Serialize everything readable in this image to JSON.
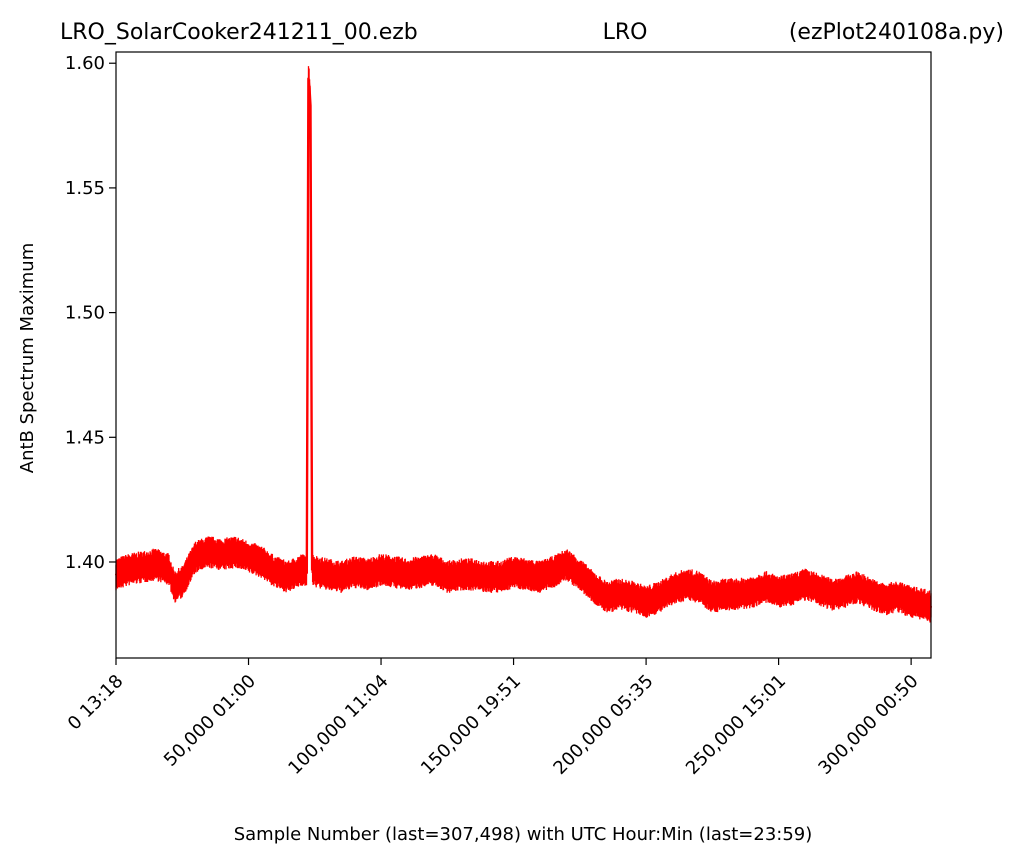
{
  "header": {
    "left": "LRO_SolarCooker241211_00.ezb",
    "center": "LRO",
    "right": "(ezPlot240108a.py)"
  },
  "chart_data": {
    "type": "line",
    "xlabel": "Sample Number (last=307,498) with UTC Hour:Min (last=23:59)",
    "ylabel": "AntB Spectrum Maximum",
    "xlim": [
      0,
      307498
    ],
    "ylim": [
      1.3615,
      1.6045
    ],
    "xticks": [
      {
        "value": 0,
        "label": "0  13:18"
      },
      {
        "value": 50000,
        "label": "50,000  01:00"
      },
      {
        "value": 100000,
        "label": "100,000  11:04"
      },
      {
        "value": 150000,
        "label": "150,000  19:51"
      },
      {
        "value": 200000,
        "label": "200,000  05:35"
      },
      {
        "value": 250000,
        "label": "250,000  15:01"
      },
      {
        "value": 300000,
        "label": "300,000  00:50"
      }
    ],
    "yticks": [
      {
        "value": 1.4,
        "label": "1.40"
      },
      {
        "value": 1.45,
        "label": "1.45"
      },
      {
        "value": 1.5,
        "label": "1.50"
      },
      {
        "value": 1.55,
        "label": "1.55"
      },
      {
        "value": 1.6,
        "label": "1.60"
      }
    ],
    "grid": false,
    "line_color": "#ff0000",
    "series": [
      {
        "x": [
          0,
          5000,
          10000,
          15000,
          20000,
          22000,
          25000,
          30000,
          35000,
          40000,
          45000,
          50000,
          55000,
          60000,
          65000,
          70000,
          72000,
          72600,
          73000,
          73400,
          74000,
          76000,
          80000,
          85000,
          90000,
          95000,
          100000,
          105000,
          110000,
          115000,
          120000,
          125000,
          130000,
          135000,
          140000,
          145000,
          150000,
          155000,
          160000,
          165000,
          170000,
          175000,
          180000,
          185000,
          190000,
          195000,
          200000,
          205000,
          210000,
          215000,
          220000,
          225000,
          230000,
          235000,
          240000,
          245000,
          250000,
          255000,
          260000,
          265000,
          270000,
          275000,
          280000,
          285000,
          290000,
          295000,
          300000,
          305000,
          307498
        ],
        "y": [
          1.395,
          1.397,
          1.398,
          1.399,
          1.397,
          1.39,
          1.392,
          1.402,
          1.404,
          1.403,
          1.404,
          1.402,
          1.4,
          1.396,
          1.394,
          1.397,
          1.396,
          1.594,
          1.59,
          1.583,
          1.397,
          1.396,
          1.395,
          1.394,
          1.396,
          1.395,
          1.397,
          1.396,
          1.395,
          1.396,
          1.397,
          1.394,
          1.395,
          1.395,
          1.394,
          1.394,
          1.396,
          1.395,
          1.394,
          1.396,
          1.399,
          1.395,
          1.39,
          1.386,
          1.387,
          1.386,
          1.384,
          1.386,
          1.389,
          1.391,
          1.39,
          1.386,
          1.387,
          1.387,
          1.388,
          1.39,
          1.388,
          1.389,
          1.391,
          1.389,
          1.387,
          1.388,
          1.39,
          1.387,
          1.385,
          1.386,
          1.384,
          1.383,
          1.382
        ]
      }
    ]
  }
}
